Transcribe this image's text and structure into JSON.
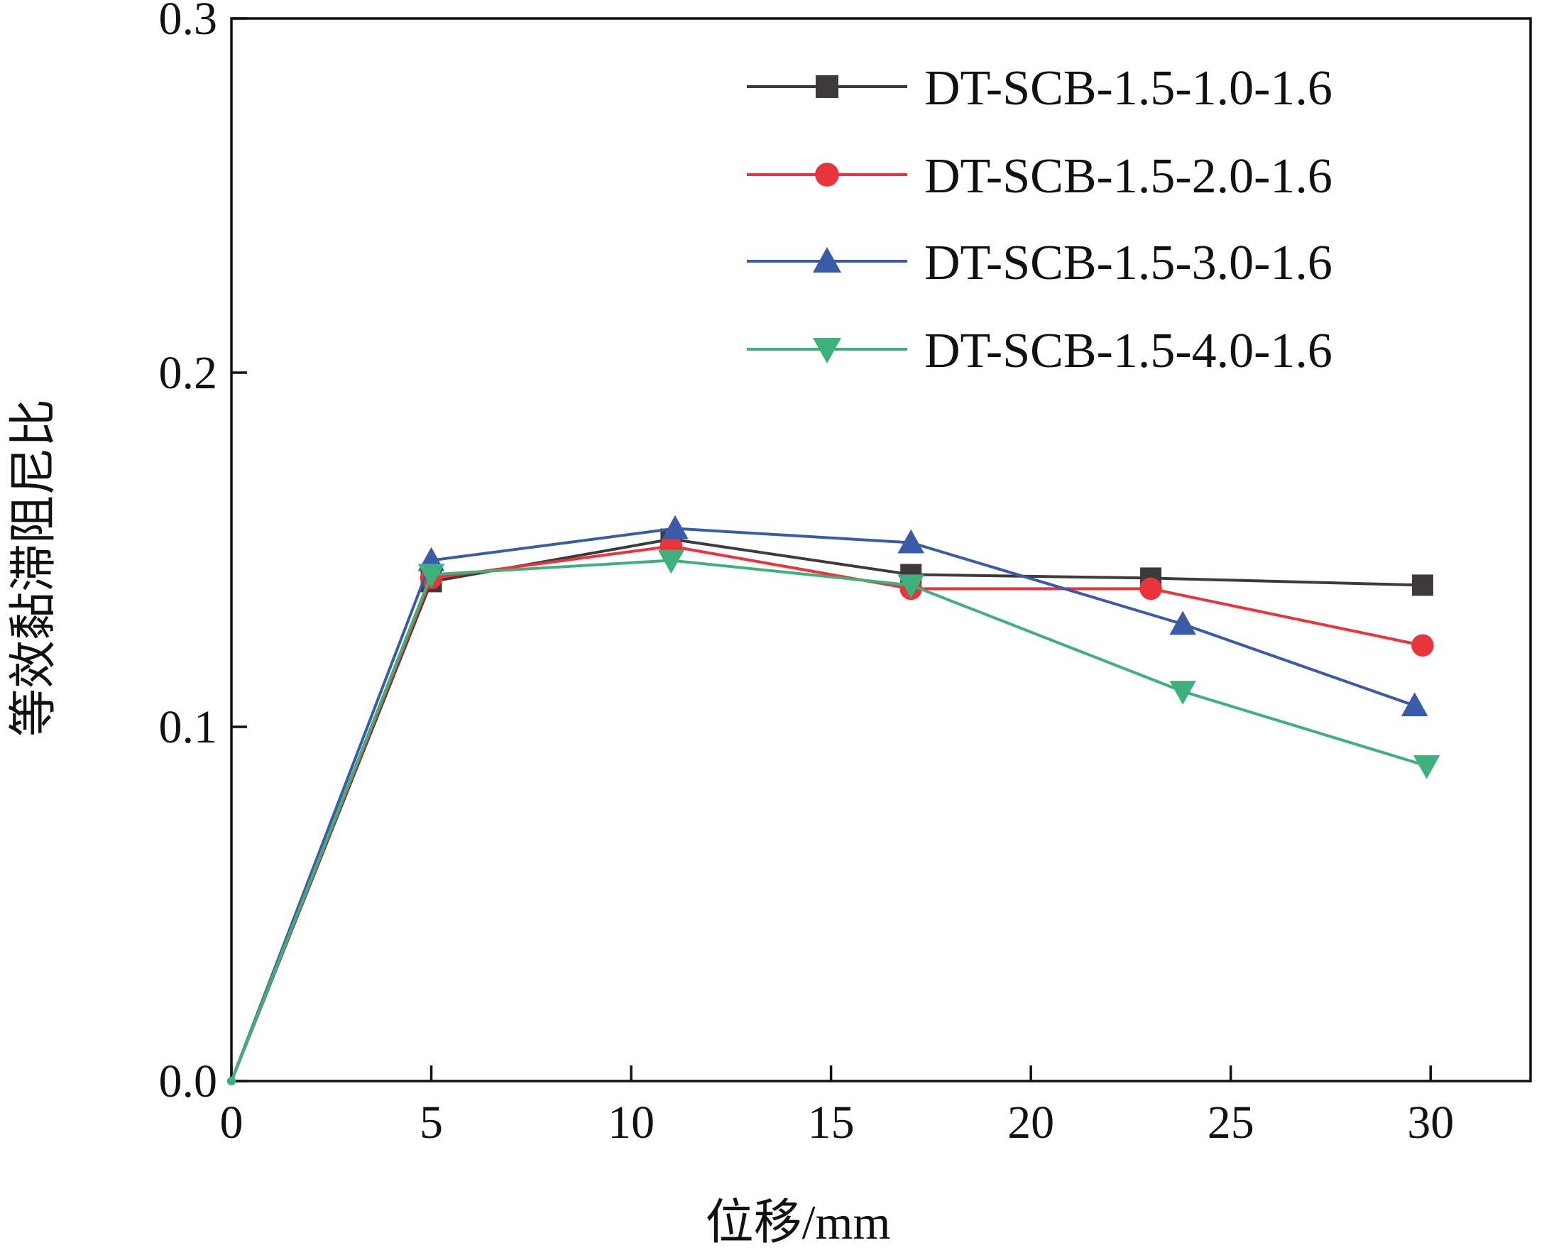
{
  "chart_data": {
    "type": "line",
    "xlabel": "位移/mm",
    "ylabel": "等效黏滞阻尼比",
    "xlim": [
      0,
      32.5
    ],
    "ylim": [
      0,
      0.3
    ],
    "xticks": [
      "0",
      "5",
      "10",
      "15",
      "20",
      "25",
      "30"
    ],
    "yticks": [
      "0.0",
      "0.1",
      "0.2",
      "0.3"
    ],
    "xtick_values": [
      0,
      5,
      10,
      15,
      20,
      25,
      30
    ],
    "ytick_values": [
      0,
      0.1,
      0.2,
      0.3
    ],
    "grid": false,
    "legend_position": "top-right",
    "series": [
      {
        "name": "DT-SCB-1.5-1.0-1.6",
        "color": "#3d3a39",
        "marker": "square",
        "x": [
          0,
          5,
          11,
          17,
          23,
          29.8
        ],
        "y": [
          0,
          0.141,
          0.153,
          0.143,
          0.142,
          0.14
        ]
      },
      {
        "name": "DT-SCB-1.5-2.0-1.6",
        "color": "#e8343a",
        "marker": "circle",
        "x": [
          0,
          5,
          11,
          17,
          23,
          29.8
        ],
        "y": [
          0,
          0.142,
          0.151,
          0.139,
          0.139,
          0.123
        ]
      },
      {
        "name": "DT-SCB-1.5-3.0-1.6",
        "color": "#3a5ca8",
        "marker": "triangle-up",
        "x": [
          0,
          5,
          11.1,
          17,
          23.8,
          29.6
        ],
        "y": [
          0,
          0.147,
          0.156,
          0.152,
          0.129,
          0.106
        ]
      },
      {
        "name": "DT-SCB-1.5-4.0-1.6",
        "color": "#3eb07c",
        "marker": "triangle-down",
        "x": [
          0,
          5,
          11,
          17,
          23.8,
          29.9
        ],
        "y": [
          0,
          0.143,
          0.147,
          0.14,
          0.11,
          0.089
        ]
      }
    ]
  }
}
